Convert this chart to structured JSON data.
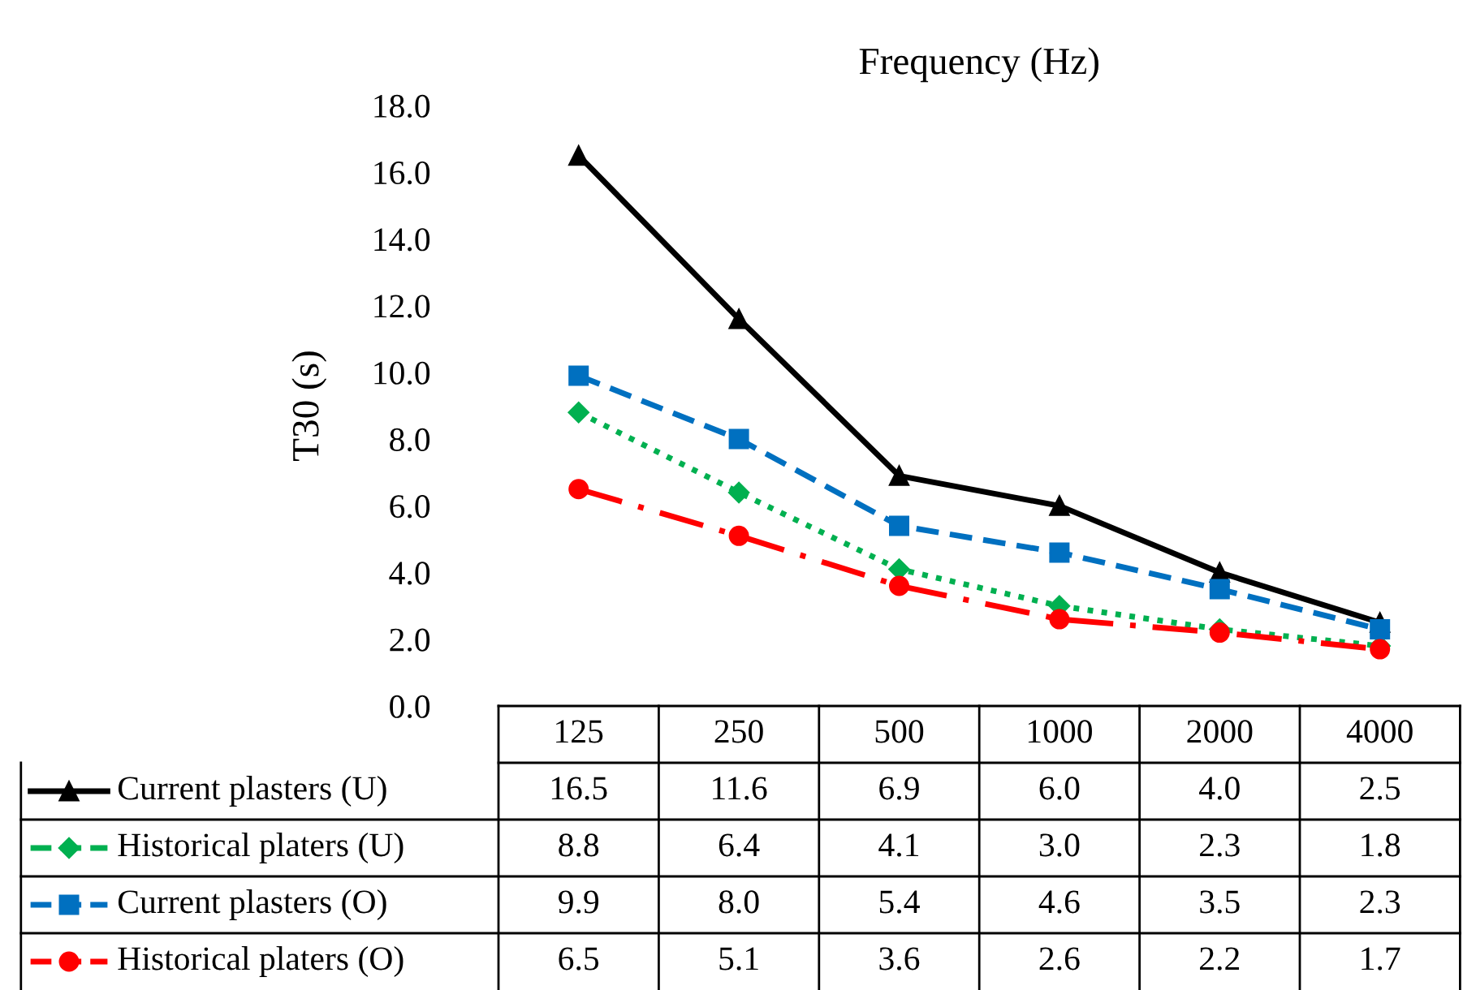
{
  "chart_data": {
    "type": "line",
    "xlabel": "Frequency (Hz)",
    "ylabel": "T30 (s)",
    "categories": [
      "125",
      "250",
      "500",
      "1000",
      "2000",
      "4000"
    ],
    "series": [
      {
        "name": "Current plasters (U)",
        "color": "#000000",
        "marker": "triangle",
        "line_style": "solid",
        "values": [
          16.5,
          11.6,
          6.9,
          6.0,
          4.0,
          2.5
        ],
        "value_labels": [
          "16.5",
          "11.6",
          "6.9",
          "6.0",
          "4.0",
          "2.5"
        ]
      },
      {
        "name": "Historical platers (U)",
        "color": "#00b050",
        "marker": "diamond",
        "line_style": "dotted",
        "values": [
          8.8,
          6.4,
          4.1,
          3.0,
          2.3,
          1.8
        ],
        "value_labels": [
          "8.8",
          "6.4",
          "4.1",
          "3.0",
          "2.3",
          "1.8"
        ]
      },
      {
        "name": "Current plasters (O)",
        "color": "#0070c0",
        "marker": "square",
        "line_style": "dashed",
        "values": [
          9.9,
          8.0,
          5.4,
          4.6,
          3.5,
          2.3
        ],
        "value_labels": [
          "9.9",
          "8.0",
          "5.4",
          "4.6",
          "3.5",
          "2.3"
        ]
      },
      {
        "name": "Historical platers (O)",
        "color": "#ff0000",
        "marker": "circle",
        "line_style": "dashdot",
        "values": [
          6.5,
          5.1,
          3.6,
          2.6,
          2.2,
          1.7
        ],
        "value_labels": [
          "6.5",
          "5.1",
          "3.6",
          "2.6",
          "2.2",
          "1.7"
        ]
      }
    ],
    "ylim": [
      0,
      18
    ],
    "yticks": [
      {
        "value": 0,
        "label": "0.0"
      },
      {
        "value": 2,
        "label": "2.0"
      },
      {
        "value": 4,
        "label": "4.0"
      },
      {
        "value": 6,
        "label": "6.0"
      },
      {
        "value": 8,
        "label": "8.0"
      },
      {
        "value": 10,
        "label": "10.0"
      },
      {
        "value": 12,
        "label": "12.0"
      },
      {
        "value": 14,
        "label": "14.0"
      },
      {
        "value": 16,
        "label": "16.0"
      },
      {
        "value": 18,
        "label": "18.0"
      }
    ],
    "grid": false,
    "tick_labels": "y",
    "legend": "bottom"
  }
}
